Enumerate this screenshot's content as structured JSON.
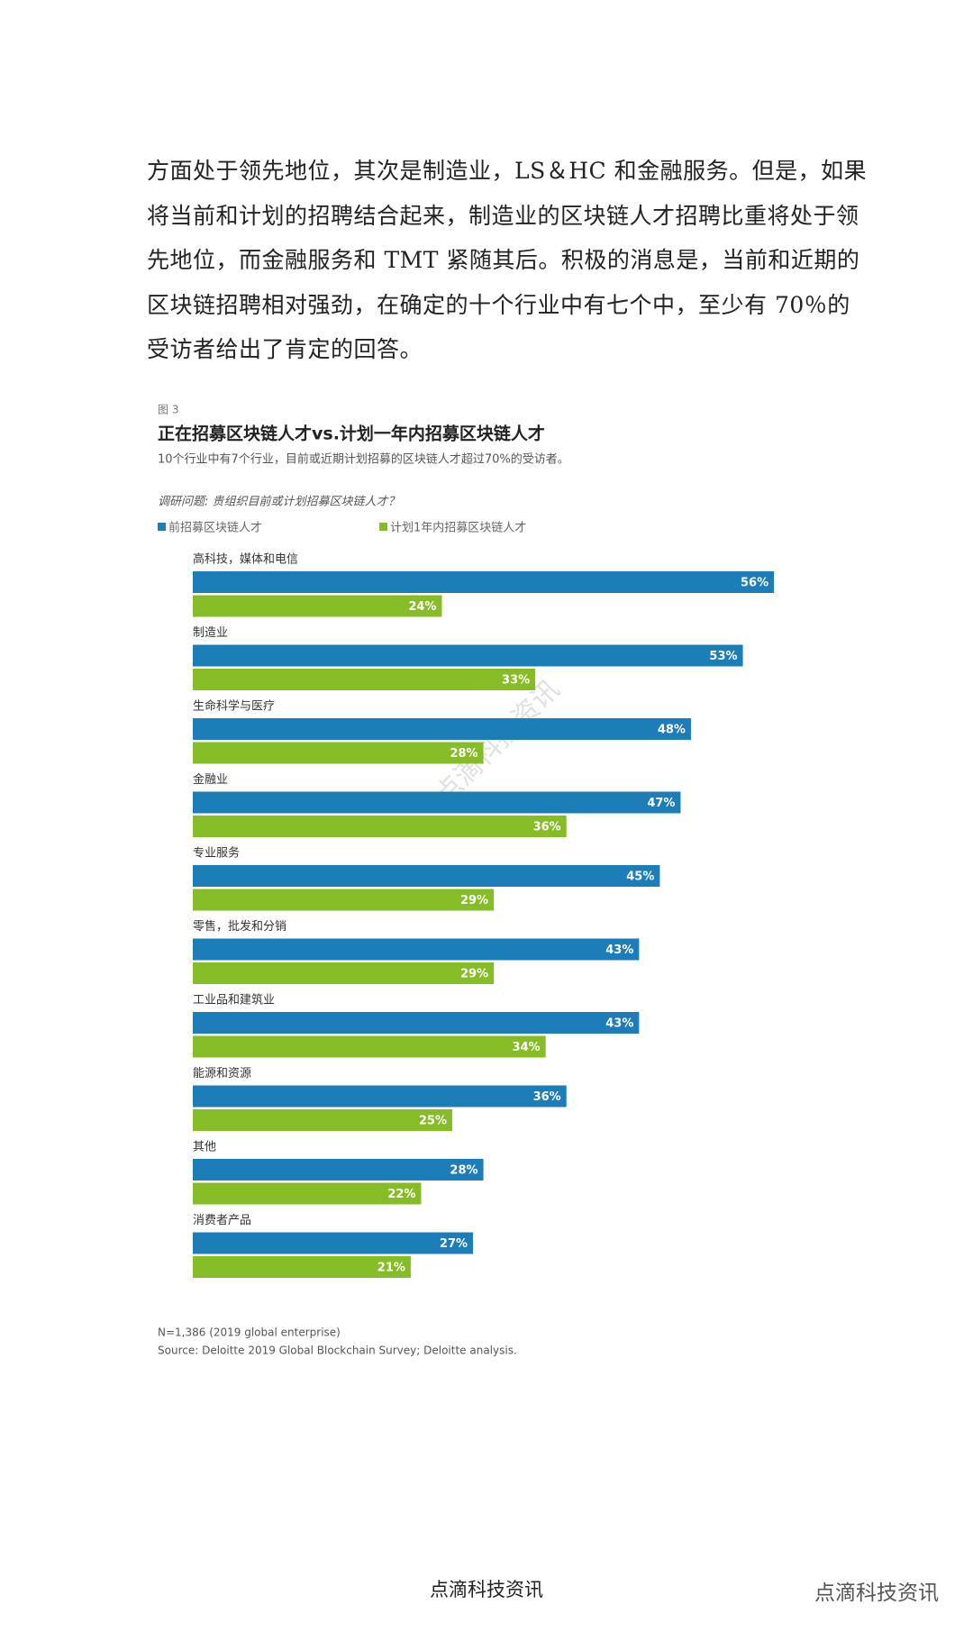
{
  "paragraph": [
    "方面处于领先地位，其次是制造业，LS＆HC 和金融服务。但是，如果",
    "将当前和计划的招聘结合起来，制造业的区块链人才招聘比重将处于领",
    "先地位，而金融服务和 TMT 紧随其后。积极的消息是，当前和近期的",
    "区块链招聘相对强劲，在确定的十个行业中有七个中，至少有 70％的",
    "受访者给出了肯定的回答。"
  ],
  "chart_data": {
    "type": "bar",
    "orientation": "horizontal",
    "figure_label": "图 3",
    "title": "正在招募区块链人才vs.计划一年内招募区块链人才",
    "subtitle": "10个行业中有7个行业，目前或近期计划招募的区块链人才超过70%的受访者。",
    "question": "调研问题: 贵组织目前或计划招募区块链人才？",
    "categories": [
      "高科技，媒体和电信",
      "制造业",
      "生命科学与医疗",
      "金融业",
      "专业服务",
      "零售，批发和分销",
      "工业品和建筑业",
      "能源和资源",
      "其他",
      "消费者产品"
    ],
    "series": [
      {
        "name": "前招募区块链人才",
        "color": "#1c7db8",
        "values": [
          56,
          53,
          48,
          47,
          45,
          43,
          43,
          36,
          28,
          27
        ],
        "value_labels": [
          "56%",
          "53%",
          "48%",
          "47%",
          "45%",
          "43%",
          "43%",
          "36%",
          "28%",
          "27%"
        ]
      },
      {
        "name": "计划1年内招募区块链人才",
        "color": "#86bc25",
        "values": [
          24,
          33,
          28,
          36,
          29,
          29,
          34,
          25,
          22,
          21
        ],
        "value_labels": [
          "24%",
          "33%",
          "28%",
          "36%",
          "29%",
          "29%",
          "34%",
          "25%",
          "22%",
          "21%"
        ]
      }
    ],
    "notes": [
      "N=1,386 (2019 global enterprise)",
      "Source: Deloitte 2019 Global Blockchain Survey; Deloitte analysis."
    ],
    "watermark": "点滴科技资讯"
  },
  "footer": {
    "center": "点滴科技资讯",
    "right": "点滴科技资讯"
  }
}
